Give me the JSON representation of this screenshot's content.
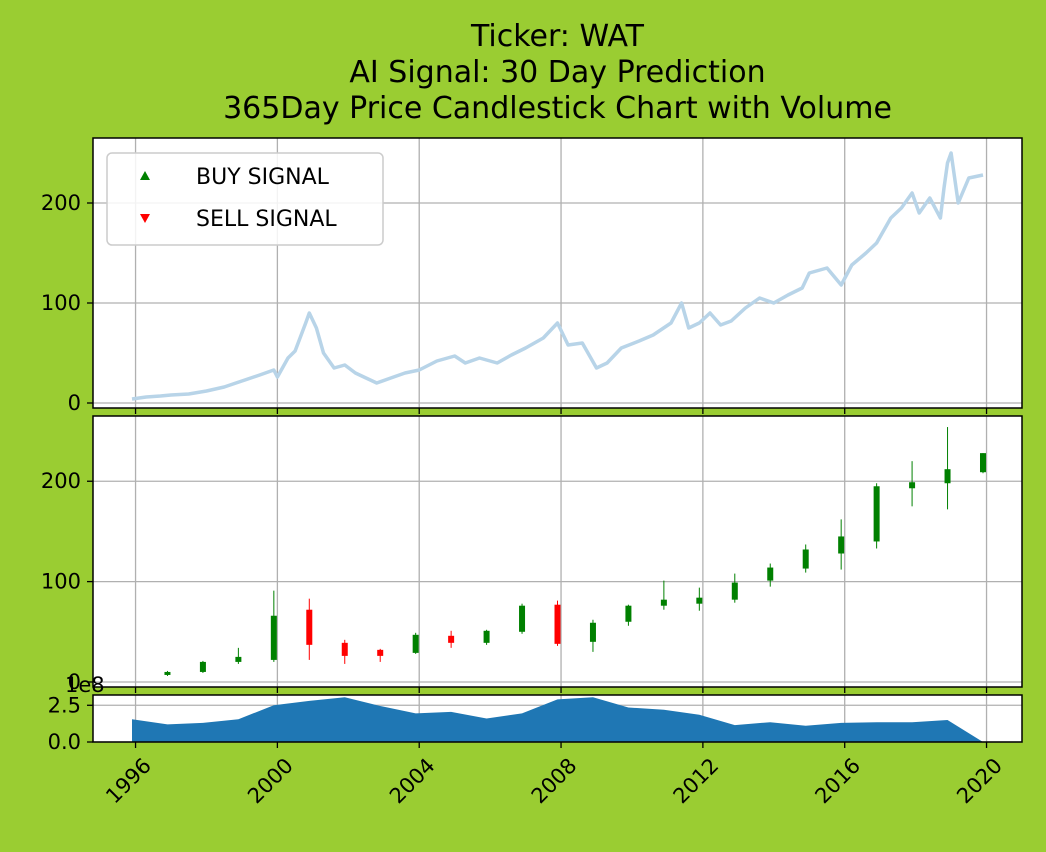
{
  "chart_data": {
    "type": "candlestick",
    "title_lines": [
      "Ticker: WAT",
      "AI Signal: 30 Day Prediction",
      "365Day Price Candlestick Chart with Volume"
    ],
    "colors": {
      "background": "#9acd32",
      "axes_face": "#ffffff",
      "grid": "#b0b0b0",
      "price_line": "#b8d4e8",
      "volume_fill": "#1f77b4",
      "up": "#008000",
      "down": "#ff0000"
    },
    "xlim": [
      1994.8,
      2021.0
    ],
    "xticks": [
      1996,
      2000,
      2004,
      2008,
      2012,
      2016,
      2020
    ],
    "xtick_labels": [
      "1996",
      "2000",
      "2004",
      "2008",
      "2012",
      "2016",
      "2020"
    ],
    "legend": {
      "placement": "upper-left",
      "items": [
        {
          "label": "BUY SIGNAL",
          "color": "#008000",
          "marker": "triangle-up"
        },
        {
          "label": "SELL SIGNAL",
          "color": "#ff0000",
          "marker": "triangle-down"
        }
      ]
    },
    "price_panel": {
      "ylim": [
        -5,
        265
      ],
      "yticks": [
        0,
        100,
        200
      ],
      "ytick_labels": [
        "0",
        "100",
        "200"
      ],
      "series": [
        [
          1995.9,
          4
        ],
        [
          1996.3,
          6
        ],
        [
          1996.7,
          7
        ],
        [
          1997.0,
          8
        ],
        [
          1997.5,
          9
        ],
        [
          1998.0,
          12
        ],
        [
          1998.5,
          16
        ],
        [
          1999.0,
          22
        ],
        [
          1999.5,
          28
        ],
        [
          1999.9,
          33
        ],
        [
          2000.0,
          26
        ],
        [
          2000.3,
          45
        ],
        [
          2000.5,
          52
        ],
        [
          2000.8,
          80
        ],
        [
          2000.9,
          90
        ],
        [
          2001.1,
          75
        ],
        [
          2001.3,
          50
        ],
        [
          2001.6,
          35
        ],
        [
          2001.9,
          38
        ],
        [
          2002.2,
          30
        ],
        [
          2002.5,
          25
        ],
        [
          2002.8,
          20
        ],
        [
          2003.2,
          25
        ],
        [
          2003.6,
          30
        ],
        [
          2004.0,
          33
        ],
        [
          2004.5,
          42
        ],
        [
          2005.0,
          47
        ],
        [
          2005.3,
          40
        ],
        [
          2005.7,
          45
        ],
        [
          2006.2,
          40
        ],
        [
          2006.6,
          48
        ],
        [
          2007.0,
          55
        ],
        [
          2007.5,
          65
        ],
        [
          2007.9,
          80
        ],
        [
          2008.2,
          58
        ],
        [
          2008.6,
          60
        ],
        [
          2009.0,
          35
        ],
        [
          2009.3,
          40
        ],
        [
          2009.7,
          55
        ],
        [
          2010.2,
          62
        ],
        [
          2010.6,
          68
        ],
        [
          2011.1,
          80
        ],
        [
          2011.4,
          100
        ],
        [
          2011.6,
          75
        ],
        [
          2011.9,
          80
        ],
        [
          2012.2,
          90
        ],
        [
          2012.5,
          78
        ],
        [
          2012.8,
          82
        ],
        [
          2013.2,
          95
        ],
        [
          2013.6,
          105
        ],
        [
          2014.0,
          100
        ],
        [
          2014.4,
          108
        ],
        [
          2014.8,
          115
        ],
        [
          2015.0,
          130
        ],
        [
          2015.5,
          135
        ],
        [
          2015.9,
          118
        ],
        [
          2016.2,
          138
        ],
        [
          2016.6,
          150
        ],
        [
          2016.9,
          160
        ],
        [
          2017.3,
          185
        ],
        [
          2017.6,
          195
        ],
        [
          2017.9,
          210
        ],
        [
          2018.1,
          190
        ],
        [
          2018.4,
          205
        ],
        [
          2018.7,
          185
        ],
        [
          2018.8,
          215
        ],
        [
          2018.9,
          240
        ],
        [
          2019.0,
          250
        ],
        [
          2019.2,
          200
        ],
        [
          2019.5,
          225
        ],
        [
          2019.9,
          228
        ]
      ]
    },
    "candle_panel": {
      "ylim": [
        -5,
        265
      ],
      "yticks": [
        0,
        100,
        200
      ],
      "ytick_labels": [
        "0",
        "100",
        "200"
      ],
      "candles": [
        {
          "x": 1996.9,
          "o": 7,
          "h": 11,
          "l": 6,
          "c": 10
        },
        {
          "x": 1997.9,
          "o": 10,
          "h": 21,
          "l": 9,
          "c": 20
        },
        {
          "x": 1998.9,
          "o": 20,
          "h": 34,
          "l": 18,
          "c": 25
        },
        {
          "x": 1999.9,
          "o": 22,
          "h": 91,
          "l": 20,
          "c": 66
        },
        {
          "x": 2000.9,
          "o": 72,
          "h": 83,
          "l": 22,
          "c": 37
        },
        {
          "x": 2001.9,
          "o": 39,
          "h": 42,
          "l": 18,
          "c": 26
        },
        {
          "x": 2002.9,
          "o": 32,
          "h": 33,
          "l": 20,
          "c": 26
        },
        {
          "x": 2003.9,
          "o": 29,
          "h": 49,
          "l": 28,
          "c": 47
        },
        {
          "x": 2004.9,
          "o": 46,
          "h": 51,
          "l": 34,
          "c": 39
        },
        {
          "x": 2005.9,
          "o": 39,
          "h": 52,
          "l": 37,
          "c": 51
        },
        {
          "x": 2006.9,
          "o": 50,
          "h": 78,
          "l": 48,
          "c": 76
        },
        {
          "x": 2007.9,
          "o": 77,
          "h": 81,
          "l": 36,
          "c": 38
        },
        {
          "x": 2008.9,
          "o": 40,
          "h": 62,
          "l": 30,
          "c": 59
        },
        {
          "x": 2009.9,
          "o": 60,
          "h": 77,
          "l": 56,
          "c": 76
        },
        {
          "x": 2010.9,
          "o": 76,
          "h": 101,
          "l": 72,
          "c": 82
        },
        {
          "x": 2011.9,
          "o": 78,
          "h": 94,
          "l": 71,
          "c": 84
        },
        {
          "x": 2012.9,
          "o": 82,
          "h": 108,
          "l": 79,
          "c": 99
        },
        {
          "x": 2013.9,
          "o": 101,
          "h": 118,
          "l": 95,
          "c": 114
        },
        {
          "x": 2014.9,
          "o": 113,
          "h": 137,
          "l": 109,
          "c": 132
        },
        {
          "x": 2015.9,
          "o": 128,
          "h": 162,
          "l": 112,
          "c": 145
        },
        {
          "x": 2016.9,
          "o": 140,
          "h": 198,
          "l": 133,
          "c": 195
        },
        {
          "x": 2017.9,
          "o": 193,
          "h": 220,
          "l": 175,
          "c": 199
        },
        {
          "x": 2018.9,
          "o": 198,
          "h": 254,
          "l": 172,
          "c": 212
        },
        {
          "x": 2019.9,
          "o": 209,
          "h": 228,
          "l": 208,
          "c": 228
        }
      ]
    },
    "volume_panel": {
      "offset_label": "1e8",
      "ylim": [
        0,
        3.2
      ],
      "yticks": [
        0.0,
        2.5
      ],
      "ytick_labels": [
        "0.0",
        "2.5"
      ],
      "x": [
        1995.9,
        1996.9,
        1997.9,
        1998.9,
        1999.9,
        2000.9,
        2001.9,
        2002.9,
        2003.9,
        2004.9,
        2005.9,
        2006.9,
        2007.9,
        2008.9,
        2009.9,
        2010.9,
        2011.9,
        2012.9,
        2013.9,
        2014.9,
        2015.9,
        2016.9,
        2017.9,
        2018.9,
        2019.9
      ],
      "values": [
        1.55,
        1.2,
        1.3,
        1.55,
        2.5,
        2.8,
        3.05,
        2.45,
        1.95,
        2.05,
        1.6,
        1.95,
        2.9,
        3.05,
        2.35,
        2.2,
        1.85,
        1.15,
        1.35,
        1.1,
        1.3,
        1.35,
        1.35,
        1.5,
        0.0
      ]
    }
  }
}
